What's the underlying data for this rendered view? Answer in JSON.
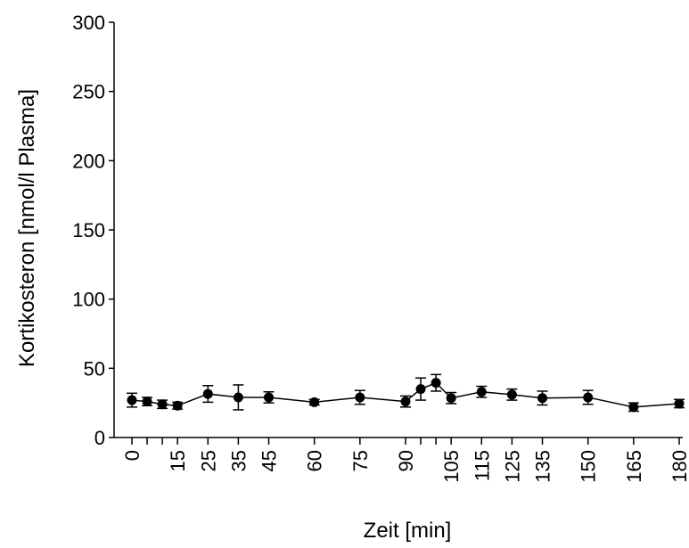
{
  "chart_data": {
    "type": "line",
    "title": "",
    "xlabel": "Zeit [min]",
    "ylabel": "Kortikosteron [nmol/l Plasma]",
    "ylim": [
      0,
      300
    ],
    "yticks": [
      0,
      50,
      100,
      150,
      200,
      250,
      300
    ],
    "xlim": [
      -5,
      182
    ],
    "xticks": [
      0,
      5,
      10,
      15,
      25,
      35,
      45,
      60,
      75,
      90,
      95,
      100,
      105,
      115,
      125,
      135,
      150,
      165,
      180
    ],
    "xtick_labels": [
      "0",
      "",
      "",
      "15",
      "25",
      "35",
      "45",
      "60",
      "75",
      "90",
      "",
      "",
      "105",
      "115",
      "125",
      "135",
      "150",
      "165",
      "180"
    ],
    "grid": false,
    "series": [
      {
        "color": "#000000",
        "marker": "circle",
        "x": [
          0,
          5,
          10,
          15,
          25,
          35,
          45,
          60,
          75,
          90,
          95,
          100,
          105,
          115,
          125,
          135,
          150,
          165,
          180
        ],
        "y": [
          27,
          26,
          24,
          23,
          31.5,
          29,
          29,
          25.5,
          29,
          26,
          35,
          39.5,
          28.5,
          33,
          31,
          28.5,
          29,
          22,
          24.5
        ],
        "error": [
          5,
          3,
          3,
          2.5,
          6,
          9,
          4,
          2,
          5,
          4,
          8,
          6,
          4,
          4,
          4,
          5,
          5,
          3,
          3
        ]
      }
    ]
  }
}
